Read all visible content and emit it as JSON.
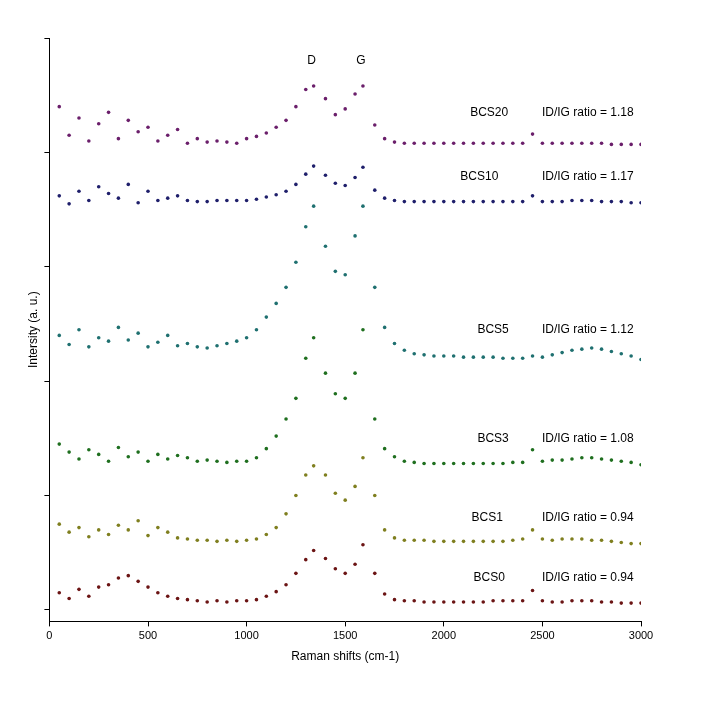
{
  "chart_data": {
    "type": "scatter",
    "x_label": "Raman shifts (cm-1)",
    "y_label": "Intersity (a. u.)",
    "xlim": [
      0,
      3000
    ],
    "xticks": [
      0,
      500,
      1000,
      1500,
      2000,
      2500,
      3000
    ],
    "ylim": [
      -0.1,
      5
    ],
    "yticks": [
      0,
      1,
      2,
      3,
      4,
      5
    ],
    "tick_labels": "x",
    "grid": false,
    "marker": "circle",
    "x": [
      50,
      100,
      150,
      200,
      250,
      300,
      350,
      400,
      450,
      500,
      550,
      600,
      650,
      700,
      750,
      800,
      850,
      900,
      950,
      1000,
      1050,
      1100,
      1150,
      1200,
      1250,
      1300,
      1340,
      1400,
      1450,
      1500,
      1550,
      1590,
      1650,
      1700,
      1750,
      1800,
      1850,
      1900,
      1950,
      2000,
      2050,
      2100,
      2150,
      2200,
      2250,
      2300,
      2350,
      2400,
      2450,
      2500,
      2550,
      2600,
      2650,
      2700,
      2750,
      2800,
      2850,
      2900,
      2950,
      3000
    ],
    "series": [
      {
        "name": "BCS20",
        "color": "#6b1f6b",
        "values": [
          4.4,
          4.15,
          4.3,
          4.1,
          4.25,
          4.35,
          4.12,
          4.28,
          4.18,
          4.22,
          4.1,
          4.15,
          4.2,
          4.08,
          4.12,
          4.09,
          4.1,
          4.09,
          4.08,
          4.12,
          4.14,
          4.17,
          4.22,
          4.28,
          4.4,
          4.55,
          4.58,
          4.47,
          4.33,
          4.38,
          4.51,
          4.58,
          4.24,
          4.12,
          4.09,
          4.08,
          4.08,
          4.08,
          4.08,
          4.08,
          4.08,
          4.08,
          4.08,
          4.08,
          4.08,
          4.08,
          4.08,
          4.08,
          4.16,
          4.08,
          4.08,
          4.08,
          4.08,
          4.08,
          4.08,
          4.08,
          4.07,
          4.07,
          4.07,
          4.07
        ]
      },
      {
        "name": "BCS10",
        "color": "#1f1f6b",
        "values": [
          3.62,
          3.55,
          3.66,
          3.58,
          3.7,
          3.64,
          3.6,
          3.72,
          3.56,
          3.66,
          3.58,
          3.6,
          3.62,
          3.58,
          3.57,
          3.57,
          3.58,
          3.58,
          3.58,
          3.58,
          3.59,
          3.61,
          3.63,
          3.66,
          3.72,
          3.81,
          3.88,
          3.8,
          3.73,
          3.71,
          3.78,
          3.87,
          3.67,
          3.6,
          3.58,
          3.57,
          3.57,
          3.57,
          3.57,
          3.57,
          3.57,
          3.57,
          3.57,
          3.57,
          3.57,
          3.57,
          3.57,
          3.57,
          3.62,
          3.57,
          3.57,
          3.57,
          3.58,
          3.58,
          3.58,
          3.57,
          3.57,
          3.57,
          3.56,
          3.56
        ]
      },
      {
        "name": "BCS5",
        "color": "#1f7070",
        "values": [
          2.4,
          2.32,
          2.45,
          2.3,
          2.38,
          2.35,
          2.47,
          2.36,
          2.42,
          2.3,
          2.34,
          2.4,
          2.31,
          2.33,
          2.3,
          2.29,
          2.31,
          2.33,
          2.35,
          2.38,
          2.45,
          2.56,
          2.68,
          2.82,
          3.04,
          3.35,
          3.53,
          3.18,
          2.96,
          2.93,
          3.27,
          3.53,
          2.82,
          2.47,
          2.33,
          2.27,
          2.24,
          2.23,
          2.22,
          2.22,
          2.22,
          2.21,
          2.21,
          2.21,
          2.21,
          2.2,
          2.2,
          2.2,
          2.22,
          2.21,
          2.23,
          2.25,
          2.27,
          2.28,
          2.29,
          2.28,
          2.26,
          2.24,
          2.22,
          2.19
        ]
      },
      {
        "name": "BCS3",
        "color": "#1f6f1f",
        "values": [
          1.45,
          1.38,
          1.32,
          1.4,
          1.36,
          1.3,
          1.42,
          1.34,
          1.38,
          1.3,
          1.36,
          1.32,
          1.35,
          1.33,
          1.3,
          1.31,
          1.3,
          1.29,
          1.3,
          1.3,
          1.33,
          1.41,
          1.52,
          1.67,
          1.85,
          2.2,
          2.38,
          2.07,
          1.89,
          1.85,
          2.07,
          2.45,
          1.67,
          1.41,
          1.34,
          1.3,
          1.29,
          1.28,
          1.28,
          1.28,
          1.28,
          1.28,
          1.28,
          1.28,
          1.28,
          1.28,
          1.29,
          1.29,
          1.4,
          1.3,
          1.31,
          1.31,
          1.32,
          1.33,
          1.33,
          1.32,
          1.31,
          1.3,
          1.29,
          1.27
        ]
      },
      {
        "name": "BCS1",
        "color": "#7f7f1f",
        "values": [
          0.75,
          0.68,
          0.72,
          0.64,
          0.7,
          0.66,
          0.74,
          0.7,
          0.78,
          0.65,
          0.72,
          0.68,
          0.63,
          0.62,
          0.61,
          0.61,
          0.6,
          0.61,
          0.6,
          0.61,
          0.62,
          0.66,
          0.72,
          0.84,
          1.0,
          1.18,
          1.26,
          1.18,
          1.02,
          0.96,
          1.08,
          1.33,
          1.0,
          0.7,
          0.63,
          0.61,
          0.61,
          0.61,
          0.6,
          0.6,
          0.6,
          0.6,
          0.6,
          0.6,
          0.6,
          0.6,
          0.61,
          0.62,
          0.7,
          0.62,
          0.61,
          0.62,
          0.62,
          0.62,
          0.61,
          0.61,
          0.6,
          0.59,
          0.58,
          0.58
        ]
      },
      {
        "name": "BCS0",
        "color": "#6b1414",
        "values": [
          0.15,
          0.1,
          0.18,
          0.12,
          0.2,
          0.22,
          0.28,
          0.3,
          0.25,
          0.2,
          0.15,
          0.12,
          0.1,
          0.09,
          0.08,
          0.07,
          0.08,
          0.07,
          0.08,
          0.08,
          0.09,
          0.12,
          0.16,
          0.22,
          0.32,
          0.44,
          0.52,
          0.45,
          0.36,
          0.32,
          0.4,
          0.57,
          0.32,
          0.14,
          0.09,
          0.08,
          0.08,
          0.07,
          0.07,
          0.07,
          0.07,
          0.07,
          0.07,
          0.07,
          0.08,
          0.08,
          0.08,
          0.08,
          0.17,
          0.08,
          0.07,
          0.07,
          0.08,
          0.08,
          0.08,
          0.07,
          0.07,
          0.06,
          0.06,
          0.06
        ]
      }
    ],
    "annotations": [
      {
        "text": "D",
        "x": 1330,
        "y": 4.8
      },
      {
        "text": "G",
        "x": 1580,
        "y": 4.8
      },
      {
        "text": "BCS20",
        "x": 2230,
        "y": 4.35
      },
      {
        "text": "ID/IG ratio = 1.18",
        "x": 2730,
        "y": 4.35
      },
      {
        "text": "BCS10",
        "x": 2180,
        "y": 3.79
      },
      {
        "text": "ID/IG ratio = 1.17",
        "x": 2730,
        "y": 3.79
      },
      {
        "text": "BCS5",
        "x": 2250,
        "y": 2.45
      },
      {
        "text": "ID/IG ratio = 1.12",
        "x": 2730,
        "y": 2.45
      },
      {
        "text": "BCS3",
        "x": 2250,
        "y": 1.5
      },
      {
        "text": "ID/IG ratio = 1.08",
        "x": 2730,
        "y": 1.5
      },
      {
        "text": "BCS1",
        "x": 2220,
        "y": 0.81
      },
      {
        "text": "ID/IG ratio = 0.94",
        "x": 2730,
        "y": 0.81
      },
      {
        "text": "BCS0",
        "x": 2230,
        "y": 0.28
      },
      {
        "text": "ID/IG ratio = 0.94",
        "x": 2730,
        "y": 0.28
      }
    ]
  }
}
